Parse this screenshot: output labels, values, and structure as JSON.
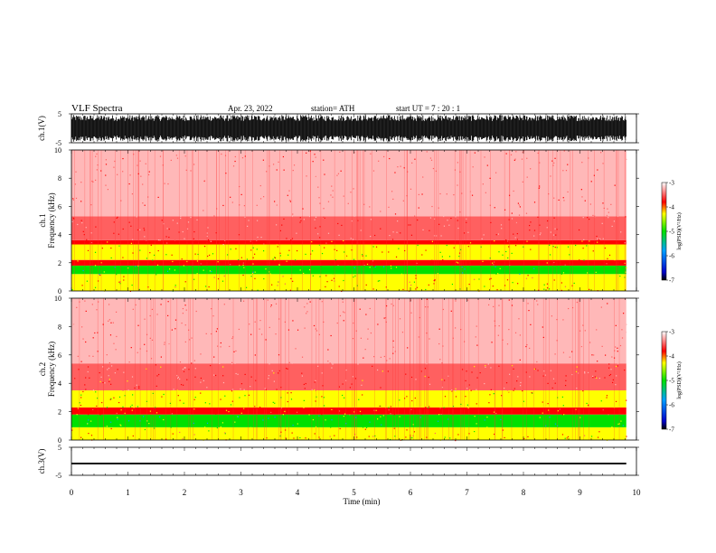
{
  "header": {
    "title": "VLF  Spectra",
    "date": "Apr. 23, 2022",
    "station": "station= ATH",
    "start": "start  UT  =    7  : 20 : 1"
  },
  "chart_data": {
    "type": "heatmap",
    "x": {
      "label": "Time  (min)",
      "range": [
        0,
        10
      ],
      "ticks": [
        "0",
        "1",
        "2",
        "3",
        "4",
        "5",
        "6",
        "7",
        "8",
        "9",
        "10"
      ],
      "data_end_min": 9.82
    },
    "panels": [
      {
        "id": "ch1_waveform",
        "kind": "waveform",
        "ylabel": "ch.1(V)",
        "yticks": [
          "5",
          "-5"
        ],
        "ylim": [
          -5,
          5
        ],
        "amplitude_v": 4.6
      },
      {
        "id": "ch1_spectrogram",
        "kind": "spectrogram",
        "channel_label": "ch.1",
        "ylabel": "Frequency  (kHz)",
        "yticks": [
          "0",
          "2",
          "4",
          "6",
          "8",
          "10"
        ],
        "ylim_khz": [
          0,
          10
        ],
        "bands_khz": [
          {
            "from": 0,
            "to": 1.2,
            "level": -4.3
          },
          {
            "from": 1.2,
            "to": 1.8,
            "level": -4.9
          },
          {
            "from": 1.8,
            "to": 2.2,
            "level": -4.1
          },
          {
            "from": 2.2,
            "to": 3.3,
            "level": -4.45
          },
          {
            "from": 3.3,
            "to": 3.6,
            "level": -3.95
          },
          {
            "from": 3.6,
            "to": 5.3,
            "level": -3.6
          },
          {
            "from": 5.3,
            "to": 10,
            "level": -3.3
          }
        ],
        "colorbar": {
          "label": "log(PSD)(V²/Hz)",
          "ticks": [
            "-3",
            "-4",
            "-5",
            "-6",
            "-7"
          ],
          "range": [
            -7,
            -3
          ]
        }
      },
      {
        "id": "ch2_spectrogram",
        "kind": "spectrogram",
        "channel_label": "ch.2",
        "ylabel": "Frequency  (kHz)",
        "yticks": [
          "0",
          "2",
          "4",
          "6",
          "8",
          "10"
        ],
        "ylim_khz": [
          0,
          10
        ],
        "bands_khz": [
          {
            "from": 0,
            "to": 0.9,
            "level": -4.3
          },
          {
            "from": 0.9,
            "to": 1.8,
            "level": -4.9
          },
          {
            "from": 1.8,
            "to": 2.3,
            "level": -4.1
          },
          {
            "from": 2.3,
            "to": 3.5,
            "level": -4.45
          },
          {
            "from": 3.5,
            "to": 5.4,
            "level": -3.7
          },
          {
            "from": 5.4,
            "to": 10,
            "level": -3.35
          }
        ],
        "colorbar": {
          "label": "log(PSD)(V²/Hz)",
          "ticks": [
            "-3",
            "-4",
            "-5",
            "-6",
            "-7"
          ],
          "range": [
            -7,
            -3
          ]
        }
      },
      {
        "id": "ch3_waveform",
        "kind": "waveform",
        "ylabel": "ch.3(V)",
        "yticks": [
          "5",
          "-5"
        ],
        "ylim": [
          -5,
          5
        ],
        "amplitude_v": 0.3,
        "offset_v": -0.8
      }
    ],
    "colors": {
      "axis": "#000000",
      "colormap": [
        "#000000",
        "#0000c8",
        "#00a0ff",
        "#00e000",
        "#ffff00",
        "#ff0000",
        "#ffffff"
      ]
    }
  }
}
